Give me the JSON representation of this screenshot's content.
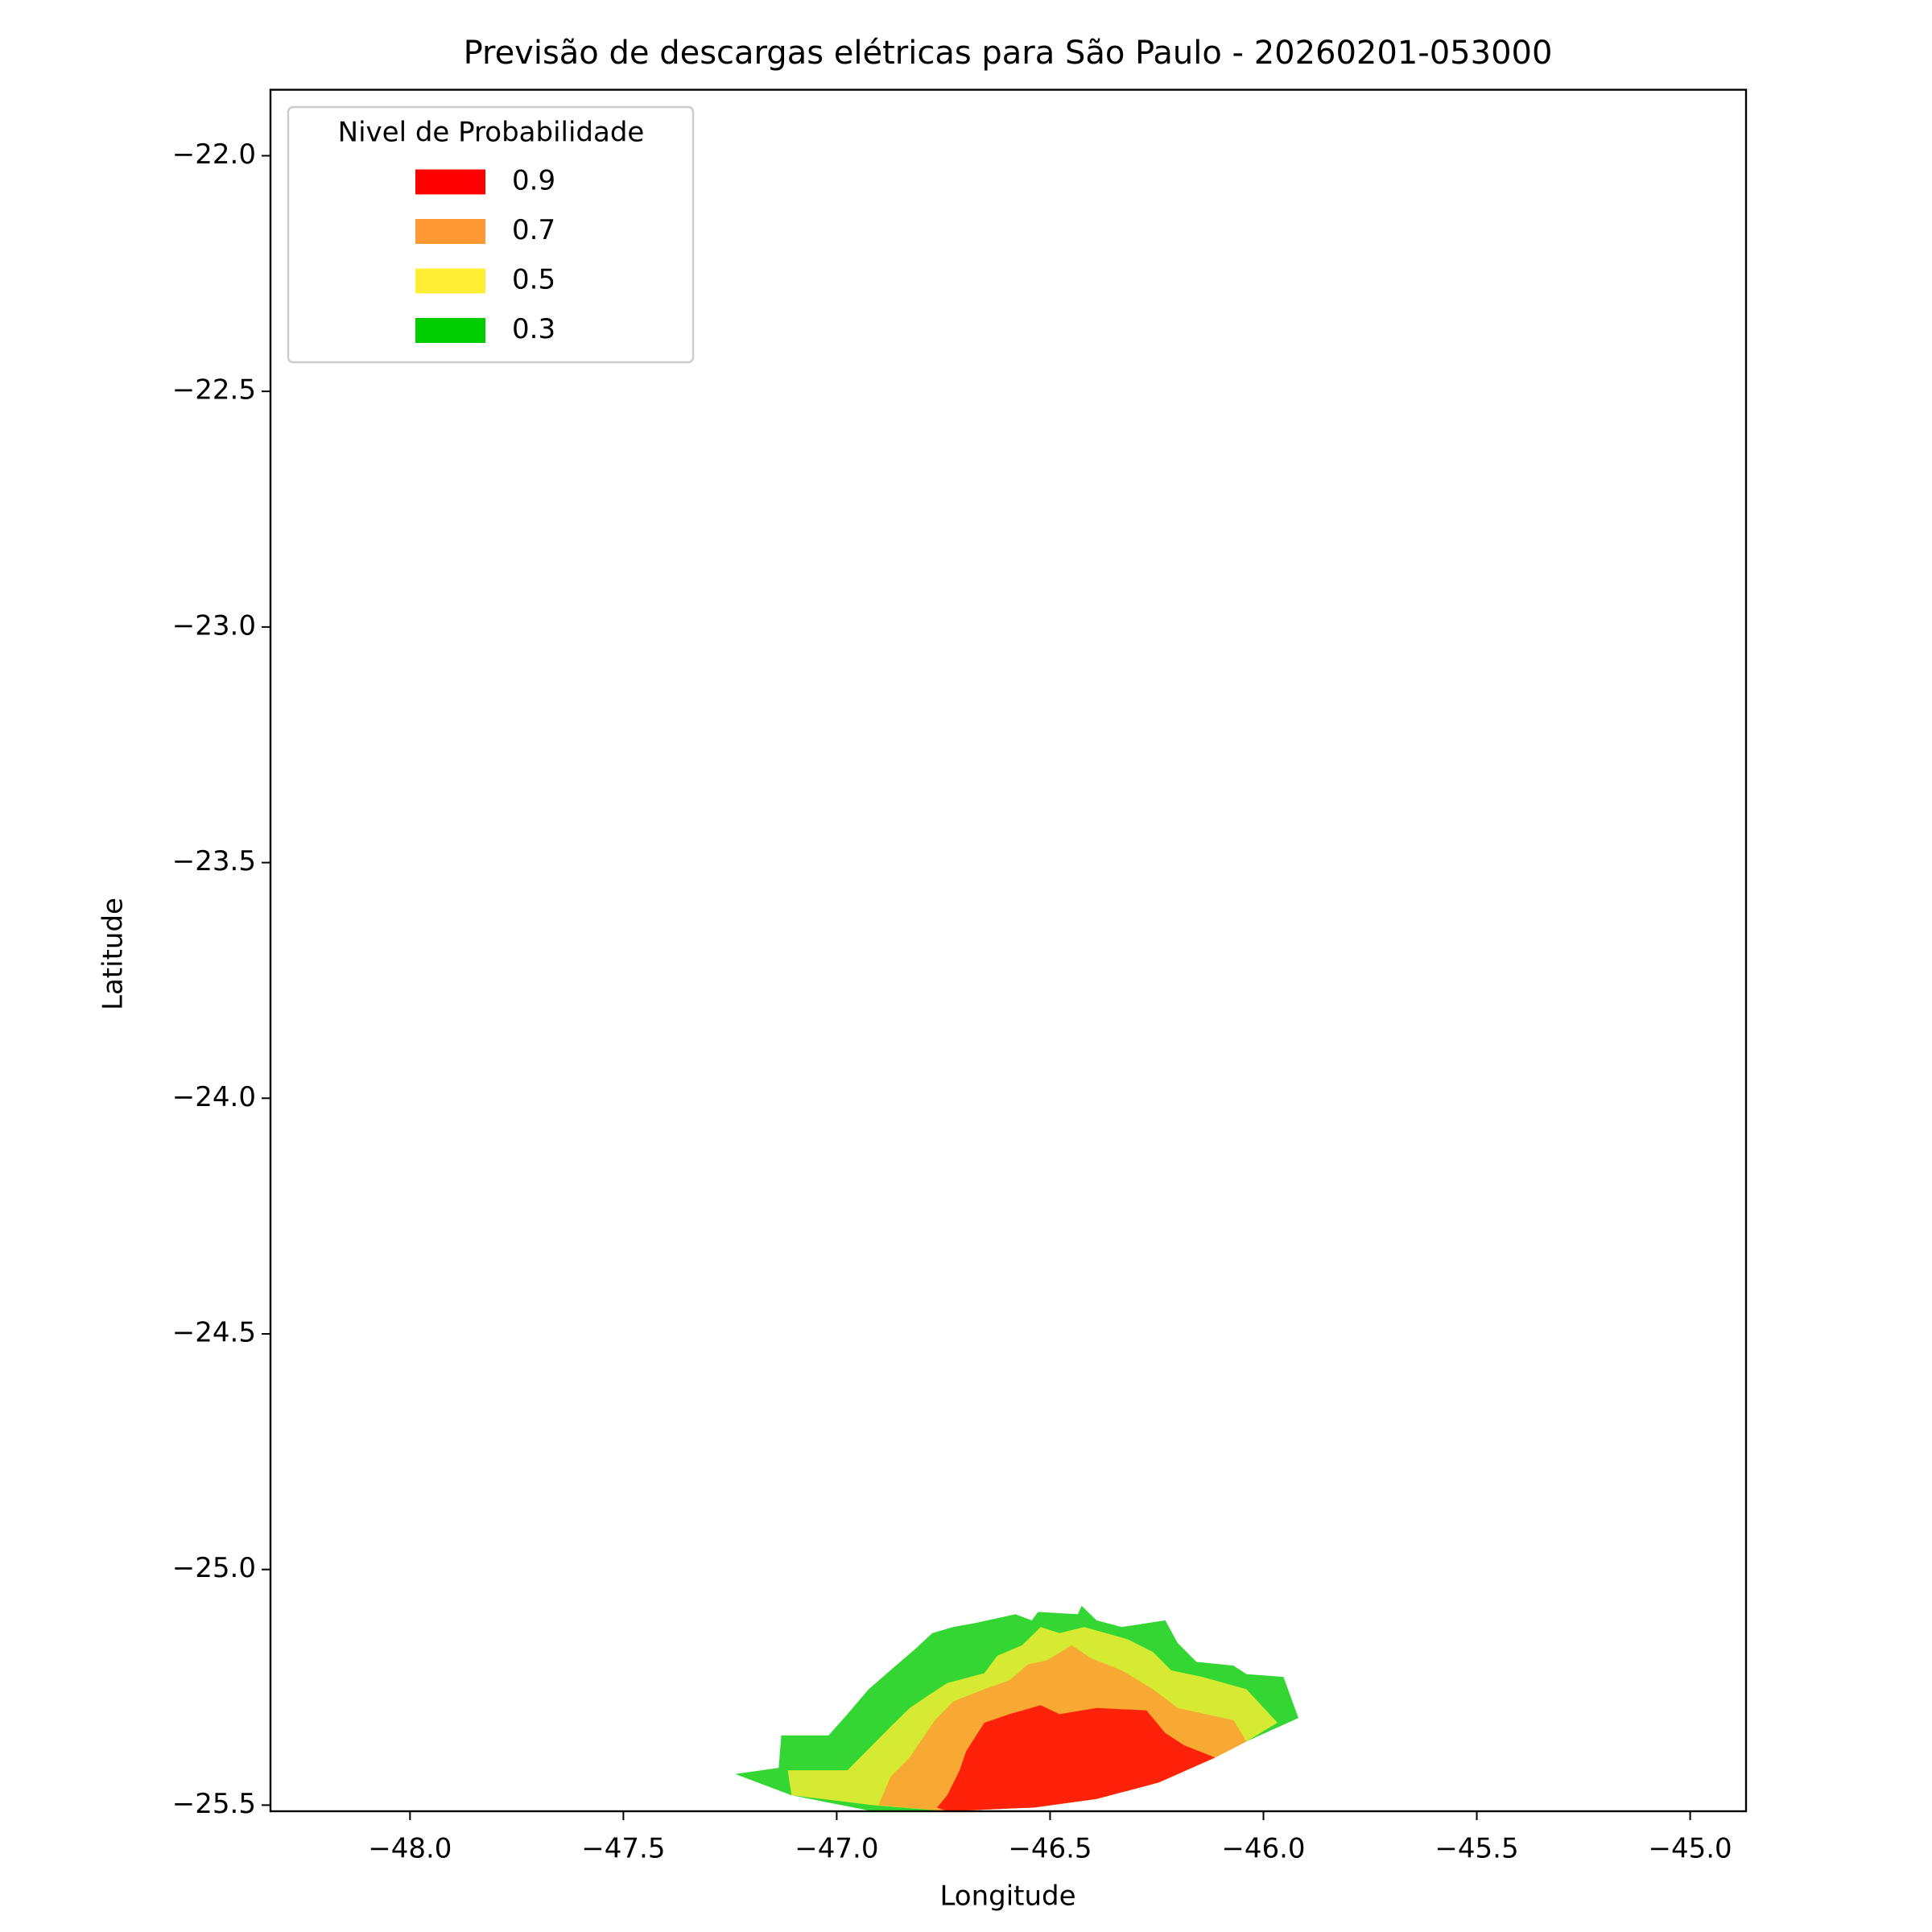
{
  "chart_data": {
    "type": "contour",
    "title": "Previsão de descargas elétricas para São Paulo - 20260201-053000",
    "x_label": "Longitude",
    "y_label": "Latitude",
    "legend_title": "Nivel de Probabilidade",
    "legend": "upper left",
    "alpha": 0.8,
    "xlim": [
      -48.327,
      -44.869
    ],
    "ylim": [
      -25.513,
      -21.86
    ],
    "xticks": [
      {
        "value": -48.0,
        "label": "−48.0"
      },
      {
        "value": -47.5,
        "label": "−47.5"
      },
      {
        "value": -47.0,
        "label": "−47.0"
      },
      {
        "value": -46.5,
        "label": "−46.5"
      },
      {
        "value": -46.0,
        "label": "−46.0"
      },
      {
        "value": -45.5,
        "label": "−45.5"
      },
      {
        "value": -45.0,
        "label": "−45.0"
      }
    ],
    "yticks": [
      {
        "value": -22.0,
        "label": "−22.0"
      },
      {
        "value": -22.5,
        "label": "−22.5"
      },
      {
        "value": -23.0,
        "label": "−23.0"
      },
      {
        "value": -23.5,
        "label": "−23.5"
      },
      {
        "value": -24.0,
        "label": "−24.0"
      },
      {
        "value": -24.5,
        "label": "−24.5"
      },
      {
        "value": -25.0,
        "label": "−25.0"
      },
      {
        "value": -25.5,
        "label": "−25.5"
      }
    ],
    "series": [
      {
        "name": "0.9",
        "color": "#ff0000",
        "x": [
          -46.765,
          -46.741,
          -46.712,
          -46.697,
          -46.654,
          -46.595,
          -46.522,
          -46.478,
          -46.391,
          -46.274,
          -46.23,
          -46.186,
          -46.113,
          -46.245,
          -46.391,
          -46.537,
          -46.741
        ],
        "y": [
          -25.505,
          -25.479,
          -25.426,
          -25.386,
          -25.325,
          -25.307,
          -25.288,
          -25.307,
          -25.294,
          -25.299,
          -25.347,
          -25.373,
          -25.399,
          -25.452,
          -25.487,
          -25.505,
          -25.513
        ]
      },
      {
        "name": "0.7",
        "color": "#ff9933",
        "x": [
          -46.902,
          -46.873,
          -46.829,
          -46.8,
          -46.77,
          -46.727,
          -46.654,
          -46.595,
          -46.551,
          -46.508,
          -46.449,
          -46.405,
          -46.332,
          -46.259,
          -46.201,
          -46.07,
          -46.04,
          -46.113,
          -46.245,
          -46.391,
          -46.537,
          -46.741
        ],
        "y": [
          -25.5,
          -25.439,
          -25.399,
          -25.36,
          -25.32,
          -25.28,
          -25.254,
          -25.235,
          -25.201,
          -25.193,
          -25.161,
          -25.188,
          -25.214,
          -25.254,
          -25.294,
          -25.32,
          -25.365,
          -25.399,
          -25.452,
          -25.487,
          -25.505,
          -25.513
        ]
      },
      {
        "name": "0.5",
        "color": "#ffee33",
        "x": [
          -47.115,
          -46.975,
          -46.931,
          -46.873,
          -46.829,
          -46.785,
          -46.741,
          -46.654,
          -46.624,
          -46.566,
          -46.522,
          -46.478,
          -46.42,
          -46.318,
          -46.259,
          -46.216,
          -46.143,
          -46.04,
          -45.967,
          -46.04,
          -46.113,
          -46.245,
          -46.391,
          -46.537,
          -46.741,
          -46.916,
          -47.106
        ],
        "y": [
          -25.426,
          -25.426,
          -25.386,
          -25.333,
          -25.294,
          -25.267,
          -25.241,
          -25.22,
          -25.183,
          -25.161,
          -25.122,
          -25.135,
          -25.122,
          -25.148,
          -25.175,
          -25.214,
          -25.228,
          -25.254,
          -25.325,
          -25.365,
          -25.399,
          -25.452,
          -25.487,
          -25.505,
          -25.513,
          -25.5,
          -25.479
        ]
      },
      {
        "name": "0.3",
        "color": "#00cc00",
        "x": [
          -47.238,
          -47.136,
          -47.13,
          -47.019,
          -46.975,
          -46.925,
          -46.864,
          -46.814,
          -46.776,
          -46.727,
          -46.677,
          -46.581,
          -46.543,
          -46.528,
          -46.435,
          -46.426,
          -46.391,
          -46.332,
          -46.23,
          -46.201,
          -46.157,
          -46.07,
          -46.04,
          -45.953,
          -45.918,
          -46.04,
          -46.113,
          -46.245,
          -46.391,
          -46.537,
          -46.741,
          -46.916,
          -47.106
        ],
        "y": [
          -25.434,
          -25.421,
          -25.352,
          -25.352,
          -25.307,
          -25.254,
          -25.206,
          -25.167,
          -25.135,
          -25.122,
          -25.114,
          -25.095,
          -25.108,
          -25.09,
          -25.095,
          -25.077,
          -25.108,
          -25.122,
          -25.108,
          -25.156,
          -25.196,
          -25.204,
          -25.222,
          -25.228,
          -25.315,
          -25.365,
          -25.399,
          -25.452,
          -25.487,
          -25.505,
          -25.513,
          -25.513,
          -25.479
        ]
      }
    ]
  }
}
